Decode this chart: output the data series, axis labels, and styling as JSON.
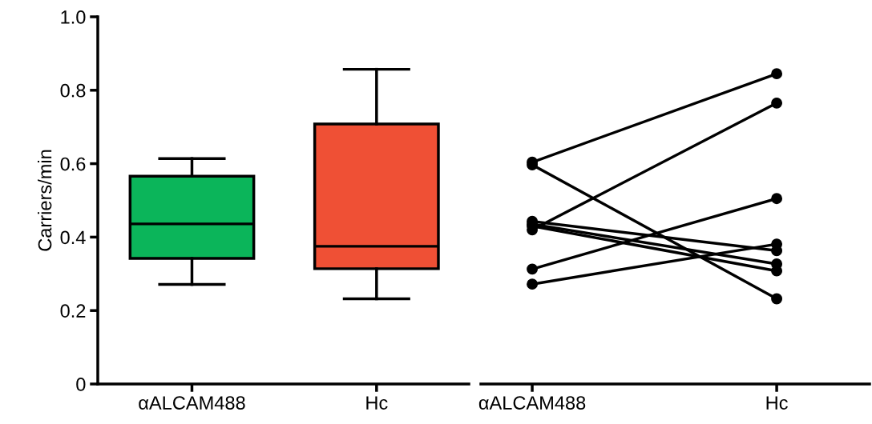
{
  "chart_data": [
    {
      "type": "box",
      "categories": [
        "αALCAM488",
        "Hc"
      ],
      "ylabel": "Carriers/min",
      "ylim": [
        0,
        1.0
      ],
      "yticks": [
        0,
        0.2,
        0.4,
        0.6,
        0.8,
        {
          "value": 1.0,
          "label": "1.0"
        }
      ],
      "colors": [
        "#0bb55a",
        "#ef5035"
      ],
      "grid": false,
      "legend": false,
      "boxes": [
        {
          "low": 0.271,
          "q1": 0.342,
          "median": 0.436,
          "q3": 0.566,
          "high": 0.614
        },
        {
          "low": 0.232,
          "q1": 0.314,
          "median": 0.375,
          "q3": 0.708,
          "high": 0.857
        }
      ]
    },
    {
      "type": "line",
      "categories": [
        "αALCAM488",
        "Hc"
      ],
      "ylim": [
        0,
        1.0
      ],
      "tick_labels": "x",
      "marker": "circle",
      "line_style": "solid",
      "grid": false,
      "legend": false,
      "series": [
        {
          "color": "#000000",
          "values": [
            0.604,
            0.845
          ]
        },
        {
          "color": "#000000",
          "values": [
            0.597,
            0.232
          ]
        },
        {
          "color": "#000000",
          "values": [
            0.42,
            0.765
          ]
        },
        {
          "color": "#000000",
          "values": [
            0.443,
            0.363
          ]
        },
        {
          "color": "#000000",
          "values": [
            0.435,
            0.327
          ]
        },
        {
          "color": "#000000",
          "values": [
            0.43,
            0.308
          ]
        },
        {
          "color": "#000000",
          "values": [
            0.313,
            0.505
          ]
        },
        {
          "color": "#000000",
          "values": [
            0.272,
            0.381
          ]
        }
      ]
    }
  ]
}
